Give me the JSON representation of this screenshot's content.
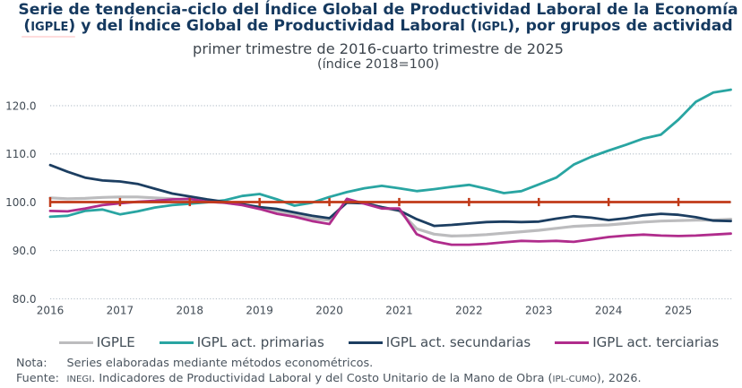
{
  "title": {
    "line1": "Serie de tendencia-ciclo del Índice Global de Productividad Laboral de la Economía",
    "line2_segments": [
      {
        "text": "(",
        "small": false
      },
      {
        "text": "IGPLE",
        "small": true
      },
      {
        "text": ") y del Índice Global de Productividad Laboral (",
        "small": false
      },
      {
        "text": "IGPL",
        "small": true
      },
      {
        "text": "), por grupos de actividad",
        "small": false
      }
    ],
    "subtitle": "primer trimestre de 2016-cuarto trimestre de 2025",
    "index_note": "(índice 2018=100)"
  },
  "chart_data": {
    "type": "line",
    "title": "Serie de tendencia-ciclo del IGPLE y del IGPL por grupos de actividad",
    "xlabel": "",
    "ylabel": "",
    "ylim": [
      80,
      120
    ],
    "grid": true,
    "gridline_color": "#b4bfc9",
    "legend_position": "bottom",
    "x_tick_labels": [
      "2016",
      "2017",
      "2018",
      "2019",
      "2020",
      "2021",
      "2022",
      "2023",
      "2024",
      "2025"
    ],
    "y_tick_labels": [
      "80.0",
      "90.0",
      "100.0",
      "110.0",
      "120.0"
    ],
    "y_ticks": [
      80,
      90,
      100,
      110,
      120
    ],
    "quarters_per_year": 4,
    "x_start": "2016-T1",
    "x_end": "2025-T4",
    "axis_text_color": "#404a54",
    "baseline": {
      "value": 100,
      "color": "#c13a18",
      "tick_interval_quarters": 4
    },
    "series": [
      {
        "name": "IGPLE",
        "color": "#bcbcbe",
        "width": 3.2,
        "values": [
          100.9,
          100.7,
          100.8,
          101.0,
          101.1,
          101.1,
          100.9,
          100.7,
          100.5,
          100.2,
          99.9,
          99.5,
          99.0,
          98.2,
          97.4,
          96.6,
          96.3,
          100.2,
          100.0,
          98.9,
          98.2,
          94.5,
          93.4,
          93.0,
          93.1,
          93.3,
          93.6,
          93.9,
          94.2,
          94.6,
          95.0,
          95.2,
          95.3,
          95.6,
          95.9,
          96.1,
          96.2,
          96.3,
          96.3,
          96.5
        ]
      },
      {
        "name": "IGPL act. primarias",
        "color": "#29a5a2",
        "width": 2.8,
        "values": [
          97.0,
          97.2,
          98.2,
          98.5,
          97.5,
          98.1,
          98.9,
          99.4,
          99.7,
          100.0,
          100.4,
          101.3,
          101.7,
          100.6,
          99.3,
          99.9,
          101.1,
          102.1,
          102.9,
          103.4,
          102.9,
          102.3,
          102.7,
          103.2,
          103.6,
          102.8,
          101.9,
          102.3,
          103.7,
          105.1,
          107.8,
          109.4,
          110.7,
          111.9,
          113.2,
          114.0,
          117.1,
          120.8,
          122.7,
          123.3
        ]
      },
      {
        "name": "IGPL act. secundarias",
        "color": "#1c3e61",
        "width": 2.8,
        "values": [
          107.7,
          106.3,
          105.1,
          104.5,
          104.3,
          103.8,
          102.8,
          101.8,
          101.2,
          100.6,
          100.1,
          99.6,
          99.0,
          98.6,
          97.9,
          97.2,
          96.7,
          99.9,
          99.8,
          99.0,
          98.3,
          96.5,
          95.1,
          95.3,
          95.6,
          95.9,
          96.0,
          95.9,
          96.0,
          96.6,
          97.1,
          96.8,
          96.3,
          96.7,
          97.3,
          97.6,
          97.4,
          96.9,
          96.2,
          96.1
        ]
      },
      {
        "name": "IGPL act. terciarias",
        "color": "#b02c8c",
        "width": 2.8,
        "values": [
          98.2,
          98.1,
          98.7,
          99.4,
          99.8,
          100.1,
          100.3,
          100.6,
          100.7,
          100.1,
          99.9,
          99.4,
          98.6,
          97.6,
          97.0,
          96.1,
          95.5,
          100.7,
          99.7,
          98.7,
          98.7,
          93.4,
          91.9,
          91.2,
          91.2,
          91.4,
          91.7,
          92.0,
          91.9,
          92.0,
          91.8,
          92.3,
          92.8,
          93.1,
          93.3,
          93.1,
          93.0,
          93.1,
          93.3,
          93.5
        ]
      }
    ]
  },
  "footer": {
    "note_label": "Nota:",
    "note_text": "Series elaboradas mediante métodos econométricos.",
    "source_label": "Fuente:",
    "source_segments": [
      {
        "text": "INEGI",
        "small": true
      },
      {
        "text": ". Indicadores de Productividad Laboral y del Costo Unitario de la Mano de Obra (",
        "small": false
      },
      {
        "text": "IPL-CUMO",
        "small": true
      },
      {
        "text": "), 2026.",
        "small": false
      }
    ]
  }
}
